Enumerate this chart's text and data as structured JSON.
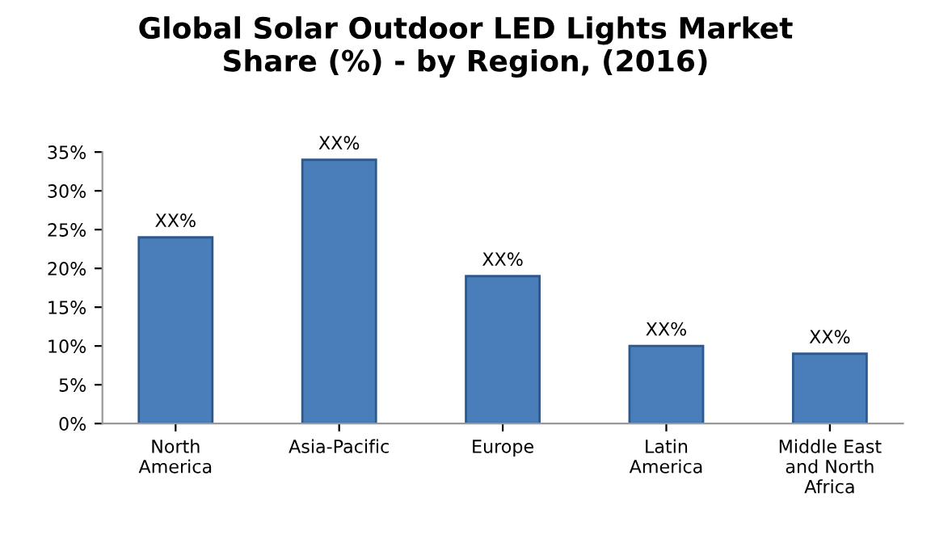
{
  "chart_data": {
    "type": "bar",
    "title": "Global Solar Outdoor LED Lights Market\nShare (%) - by Region, (2016)",
    "categories": [
      "North\nAmerica",
      "Asia-Pacific",
      "Europe",
      "Latin\nAmerica",
      "Middle East\nand North\nAfrica"
    ],
    "values": [
      24,
      34,
      19,
      10,
      9
    ],
    "value_labels": [
      "XX%",
      "XX%",
      "XX%",
      "XX%",
      "XX%"
    ],
    "color": "#4a7ebb",
    "ylim": [
      0,
      35
    ],
    "yticks": [
      {
        "value": 0,
        "label": "0%"
      },
      {
        "value": 5,
        "label": "5%"
      },
      {
        "value": 10,
        "label": "10%"
      },
      {
        "value": 15,
        "label": "15%"
      },
      {
        "value": 20,
        "label": "20%"
      },
      {
        "value": 25,
        "label": "25%"
      },
      {
        "value": 30,
        "label": "30%"
      },
      {
        "value": 35,
        "label": "35%"
      }
    ],
    "grid": false,
    "legend": false
  }
}
